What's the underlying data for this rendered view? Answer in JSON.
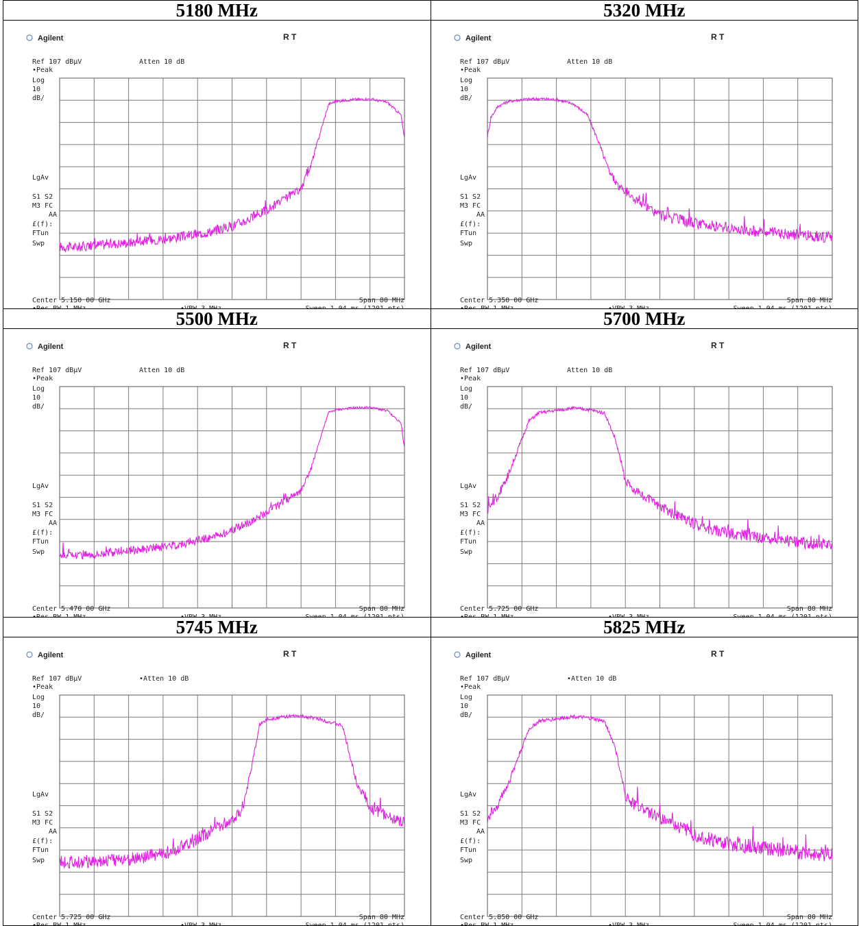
{
  "common": {
    "brand": "Agilent",
    "rt": "R   T",
    "ref": "Ref 107 dBµV",
    "peak": "•Peak",
    "log": "Log",
    "ten": "10",
    "dbdiv": "dB/",
    "lgav": "LgAv",
    "s1s2": "S1  S2",
    "m3fc": "M3  FC",
    "aa": "AA",
    "ef": "£(f):",
    "ftun": "FTun",
    "swp": "Swp",
    "span": "Span 80 MHz",
    "resbw": "•Res BW 1 MHz",
    "vbw": "•VBW 3 MHz",
    "sweep": "Sweep 1.04 ms (1201 pts)",
    "trace_color": "#e020e0"
  },
  "chart_data": [
    {
      "type": "line",
      "title": "5180 MHz",
      "atten": "Atten 10 dB",
      "center": "Center 5.150 00 GHz",
      "ylim": [
        17,
        107
      ],
      "x_divisions": 10,
      "series": [
        {
          "x": [
            0,
            0.5,
            1,
            1.5,
            2,
            2.5,
            3,
            3.5,
            4,
            4.5,
            5,
            5.5,
            6,
            6.5,
            7,
            7.3,
            7.6,
            7.8,
            8,
            8.5,
            9,
            9.5,
            9.9,
            10
          ],
          "y": [
            38.5,
            38.3,
            39,
            39.6,
            40.2,
            40.9,
            41.6,
            42.5,
            43.6,
            45,
            46.9,
            49.8,
            53.4,
            57.5,
            62,
            72,
            87,
            96.4,
            97.5,
            98.3,
            98.5,
            97.2,
            92,
            82
          ]
        }
      ],
      "noise": 1.5
    },
    {
      "type": "line",
      "title": "5320 MHz",
      "atten": "Atten 10 dB",
      "center": "Center 5.350 00 GHz",
      "ylim": [
        17,
        107
      ],
      "x_divisions": 10,
      "series": [
        {
          "x": [
            0,
            0.1,
            0.3,
            0.6,
            1,
            1.5,
            2,
            2.5,
            2.9,
            3.2,
            3.5,
            3.8,
            4.2,
            4.6,
            5,
            5.5,
            6,
            7,
            8,
            9,
            10
          ],
          "y": [
            83,
            91,
            95.5,
            97.5,
            98.3,
            98.6,
            98.3,
            96.5,
            92,
            82,
            70,
            63,
            58.5,
            54.5,
            51.5,
            49.5,
            48,
            46,
            44.5,
            43.3,
            42.2
          ]
        }
      ],
      "noise": 1.7
    },
    {
      "type": "line",
      "title": "5500 MHz",
      "atten": "Atten 10 dB",
      "center": "Center 5.470 00 GHz",
      "ylim": [
        17,
        107
      ],
      "x_divisions": 10,
      "series": [
        {
          "x": [
            0,
            0.5,
            1,
            1.5,
            2,
            2.5,
            3,
            3.5,
            4,
            4.5,
            5,
            5.5,
            6,
            6.5,
            7,
            7.3,
            7.6,
            7.8,
            8,
            8.5,
            9,
            9.5,
            9.9,
            10
          ],
          "y": [
            38.5,
            38.5,
            39,
            39.6,
            40.3,
            41,
            41.9,
            43,
            44.4,
            46.2,
            48.7,
            51.9,
            55.8,
            60.2,
            64.5,
            74,
            88,
            96.4,
            97.5,
            98.3,
            98.5,
            97.2,
            92,
            82
          ]
        }
      ],
      "noise": 1.3
    },
    {
      "type": "line",
      "title": "5700 MHz",
      "atten": "Atten 10 dB",
      "center": "Center 5.725 00 GHz",
      "ylim": [
        17,
        107
      ],
      "x_divisions": 10,
      "series": [
        {
          "x": [
            0,
            0.3,
            0.6,
            0.9,
            1.2,
            1.5,
            2,
            2.5,
            3,
            3.4,
            3.7,
            4,
            4.3,
            4.7,
            5,
            5.5,
            6,
            6.5,
            7,
            8,
            9,
            10
          ],
          "y": [
            57,
            62.5,
            71,
            82,
            93,
            96.4,
            97.3,
            98.3,
            97.5,
            96.2,
            86,
            69,
            64.5,
            61,
            58.5,
            54.5,
            51.2,
            49,
            47.5,
            45.4,
            43.8,
            42.5
          ]
        }
      ],
      "noise": 1.8
    },
    {
      "type": "line",
      "title": "5745 MHz",
      "atten": "•Atten 10 dB",
      "center": "Center 5.725 00 GHz",
      "ylim": [
        17,
        107
      ],
      "x_divisions": 10,
      "series": [
        {
          "x": [
            0,
            0.5,
            1,
            1.5,
            2,
            2.5,
            3,
            3.5,
            4,
            4.5,
            5,
            5.3,
            5.6,
            5.8,
            6,
            6.5,
            7,
            7.5,
            8.2,
            8.6,
            9,
            9.5,
            10
          ],
          "y": [
            39,
            39.2,
            39.5,
            39.8,
            40.3,
            41.2,
            42.5,
            44.8,
            48.5,
            52.5,
            56.5,
            60.5,
            80,
            95,
            97,
            98.2,
            98.4,
            97.4,
            94.5,
            72,
            61,
            58,
            55
          ]
        }
      ],
      "noise": 2.0
    },
    {
      "type": "line",
      "title": "5825 MHz",
      "atten": "•Atten 10 dB",
      "center": "Center 5.850 00 GHz",
      "ylim": [
        17,
        107
      ],
      "x_divisions": 10,
      "series": [
        {
          "x": [
            0,
            0.3,
            0.6,
            0.9,
            1.2,
            1.5,
            2,
            2.5,
            3,
            3.4,
            3.7,
            4,
            4.3,
            4.7,
            5,
            5.5,
            6,
            6.5,
            7,
            8,
            9,
            10
          ],
          "y": [
            57,
            62.5,
            71,
            82,
            93,
            96.4,
            97.3,
            98.3,
            97.5,
            96.2,
            86,
            66,
            62,
            59,
            57,
            54,
            50.5,
            48.2,
            46.5,
            44.8,
            43.2,
            42
          ]
        }
      ],
      "noise": 2.2
    }
  ]
}
